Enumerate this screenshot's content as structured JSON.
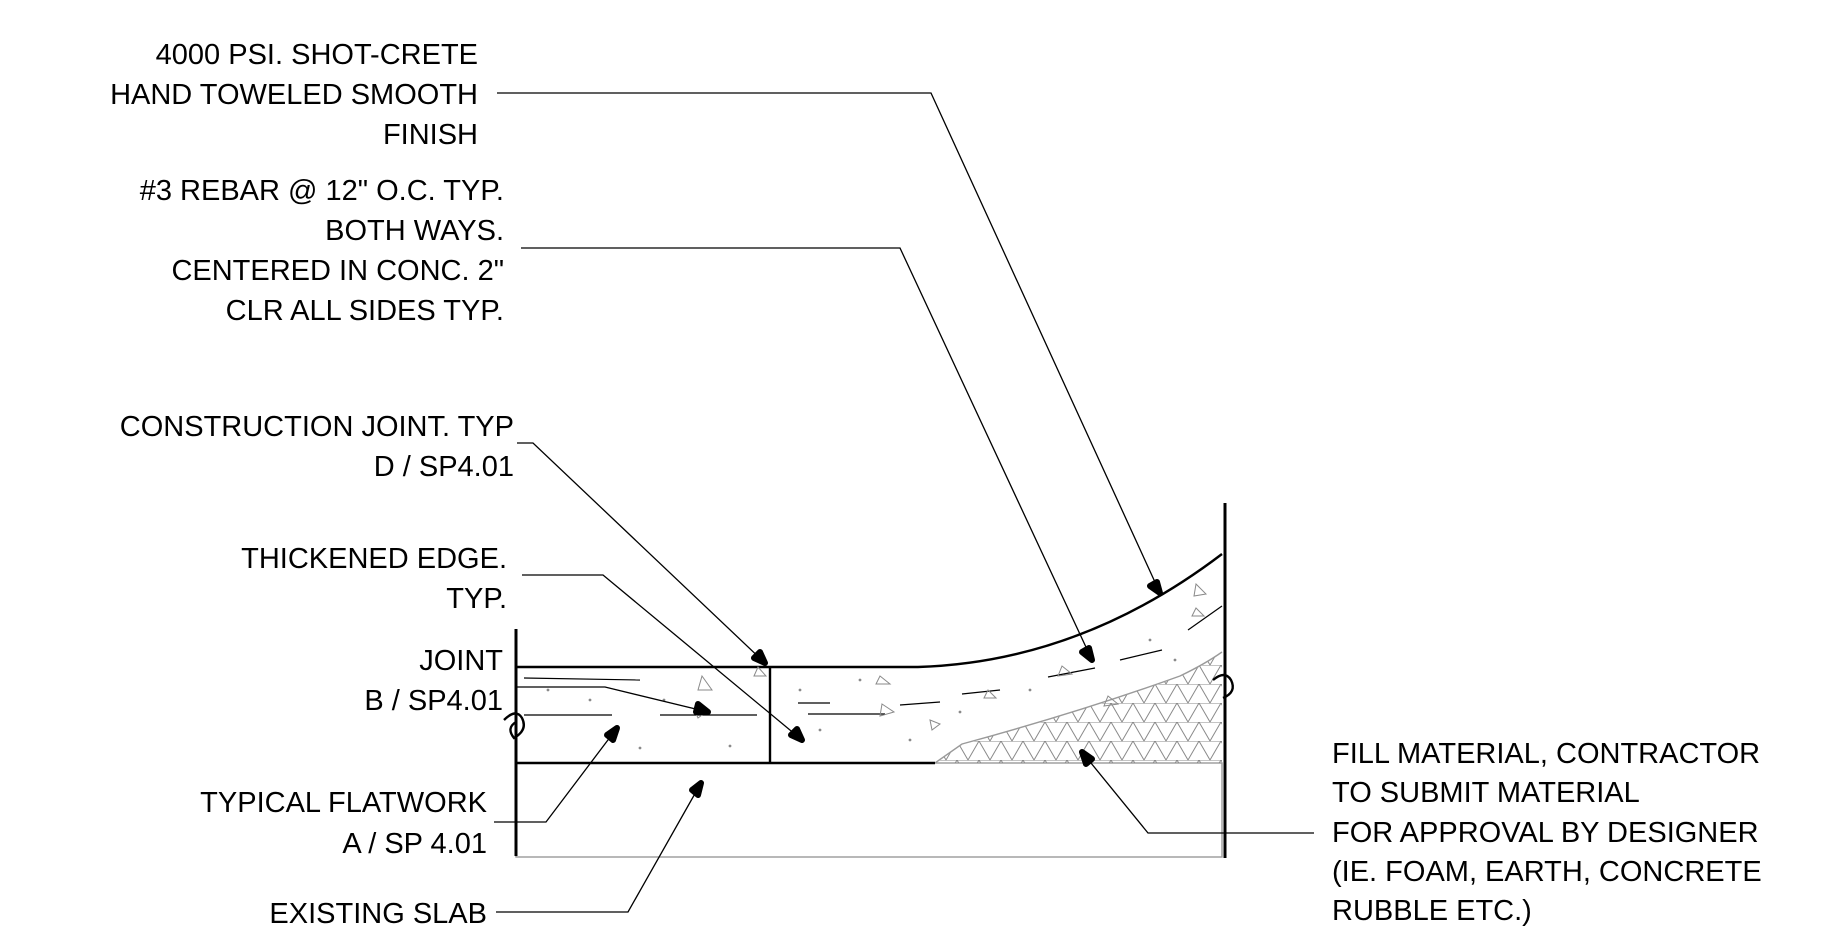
{
  "labels": {
    "shotcrete": [
      "4000 PSI. SHOT-CRETE",
      "HAND TOWELED SMOOTH",
      "FINISH"
    ],
    "rebar": [
      "#3 REBAR @ 12\" O.C. TYP.",
      "BOTH WAYS.",
      "CENTERED IN CONC. 2\"",
      "CLR ALL SIDES TYP."
    ],
    "construction_joint": [
      "CONSTRUCTION JOINT. TYP",
      "D / SP4.01"
    ],
    "thickened_edge": [
      "THICKENED EDGE.",
      "TYP."
    ],
    "joint": [
      "JOINT",
      "B / SP4.01"
    ],
    "flatwork": [
      "TYPICAL FLATWORK",
      "A / SP 4.01"
    ],
    "existing_slab": [
      "EXISTING SLAB"
    ],
    "fill_material": [
      "FILL MATERIAL, CONTRACTOR",
      "TO SUBMIT MATERIAL",
      "FOR APPROVAL BY DESIGNER",
      "(IE. FOAM, EARTH, CONCRETE",
      "RUBBLE ETC.)"
    ]
  }
}
